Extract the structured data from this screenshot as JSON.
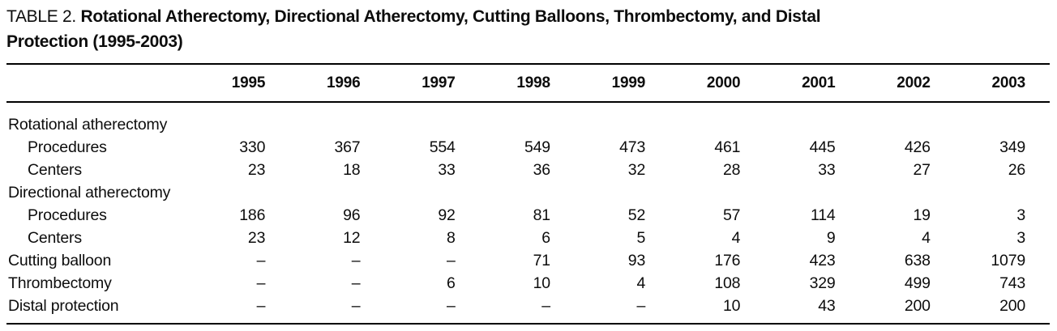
{
  "title": {
    "prefix": "TABLE 2.",
    "line1": "Rotational Atherectomy, Directional Atherectomy, Cutting Balloons, Thrombectomy, and Distal",
    "line2": "Protection (1995-2003)"
  },
  "table": {
    "year_headers": [
      "1995",
      "1996",
      "1997",
      "1998",
      "1999",
      "2000",
      "2001",
      "2002",
      "2003"
    ],
    "rows": [
      {
        "label": "Rotational atherectomy",
        "indent": false,
        "values": [
          "",
          "",
          "",
          "",
          "",
          "",
          "",
          "",
          ""
        ]
      },
      {
        "label": "Procedures",
        "indent": true,
        "values": [
          "330",
          "367",
          "554",
          "549",
          "473",
          "461",
          "445",
          "426",
          "349"
        ]
      },
      {
        "label": "Centers",
        "indent": true,
        "values": [
          "23",
          "18",
          "33",
          "36",
          "32",
          "28",
          "33",
          "27",
          "26"
        ]
      },
      {
        "label": "Directional atherectomy",
        "indent": false,
        "values": [
          "",
          "",
          "",
          "",
          "",
          "",
          "",
          "",
          ""
        ]
      },
      {
        "label": "Procedures",
        "indent": true,
        "values": [
          "186",
          "96",
          "92",
          "81",
          "52",
          "57",
          "114",
          "19",
          "3"
        ]
      },
      {
        "label": "Centers",
        "indent": true,
        "values": [
          "23",
          "12",
          "8",
          "6",
          "5",
          "4",
          "9",
          "4",
          "3"
        ]
      },
      {
        "label": "Cutting balloon",
        "indent": false,
        "values": [
          "–",
          "–",
          "–",
          "71",
          "93",
          "176",
          "423",
          "638",
          "1079"
        ]
      },
      {
        "label": "Thrombectomy",
        "indent": false,
        "values": [
          "–",
          "–",
          "6",
          "10",
          "4",
          "108",
          "329",
          "499",
          "743"
        ]
      },
      {
        "label": "Distal protection",
        "indent": false,
        "values": [
          "–",
          "–",
          "–",
          "–",
          "–",
          "10",
          "43",
          "200",
          "200"
        ]
      }
    ]
  },
  "colors": {
    "text": "#0d0d0d",
    "rule": "#000000",
    "background": "#ffffff"
  }
}
